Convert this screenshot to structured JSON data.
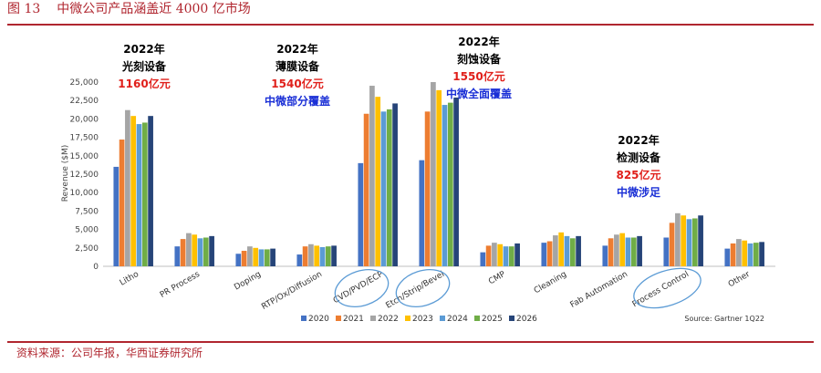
{
  "figure": {
    "number": "图 13",
    "title": "中微公司产品涵盖近 4000 亿市场",
    "footer": "资料来源：公司年报，华西证券研究所"
  },
  "chart_data": {
    "type": "bar",
    "ylabel": "Revenue ($M)",
    "ylim": [
      0,
      25000
    ],
    "yticks": [
      "0",
      "2,500",
      "5,000",
      "7,500",
      "10,000",
      "12,500",
      "15,000",
      "17,500",
      "20,000",
      "22,500",
      "25,000"
    ],
    "categories": [
      "Litho",
      "PR Process",
      "Doping",
      "RTP/Ox/Diffusion",
      "CVD/PVD/ECP",
      "Etch/Strip/Bevel",
      "CMP",
      "Cleaning",
      "Fab Automation",
      "Process Control",
      "Other"
    ],
    "series": [
      {
        "name": "2020",
        "color": "#4472c4",
        "values": [
          13500,
          2700,
          1700,
          1600,
          14000,
          14400,
          1900,
          3200,
          2800,
          3900,
          2400
        ]
      },
      {
        "name": "2021",
        "color": "#ed7d31",
        "values": [
          17200,
          3700,
          2100,
          2700,
          20700,
          21000,
          2800,
          3400,
          3800,
          5900,
          3100
        ]
      },
      {
        "name": "2022",
        "color": "#a5a5a5",
        "values": [
          21200,
          4500,
          2700,
          3000,
          24500,
          25000,
          3200,
          4200,
          4300,
          7200,
          3700
        ]
      },
      {
        "name": "2023",
        "color": "#ffc000",
        "values": [
          20400,
          4300,
          2500,
          2800,
          23000,
          23900,
          3000,
          4600,
          4500,
          6900,
          3500
        ]
      },
      {
        "name": "2024",
        "color": "#5b9bd5",
        "values": [
          19300,
          3800,
          2300,
          2600,
          21000,
          21900,
          2700,
          4100,
          3900,
          6400,
          3100
        ]
      },
      {
        "name": "2025",
        "color": "#70ad47",
        "values": [
          19500,
          3900,
          2300,
          2700,
          21300,
          22200,
          2700,
          3800,
          3900,
          6500,
          3200
        ]
      },
      {
        "name": "2026",
        "color": "#264478",
        "values": [
          20400,
          4100,
          2400,
          2800,
          22100,
          22900,
          3100,
          4100,
          4100,
          6900,
          3300
        ]
      }
    ],
    "source": "Source:  Gartner 1Q22",
    "annotations": [
      {
        "year": "2022年",
        "name": "光刻设备",
        "value": "1160亿元",
        "coverage": ""
      },
      {
        "year": "2022年",
        "name": "薄膜设备",
        "value": "1540亿元",
        "coverage": "中微部分覆盖"
      },
      {
        "year": "2022年",
        "name": "刻蚀设备",
        "value": "1550亿元",
        "coverage": "中微全面覆盖"
      },
      {
        "year": "2022年",
        "name": "检测设备",
        "value": "825亿元",
        "coverage": "中微涉足"
      }
    ],
    "highlighted_categories": [
      "CVD/PVD/ECP",
      "Etch/Strip/Bevel",
      "Process Control"
    ],
    "highlight_color": "#5b9bd5"
  }
}
